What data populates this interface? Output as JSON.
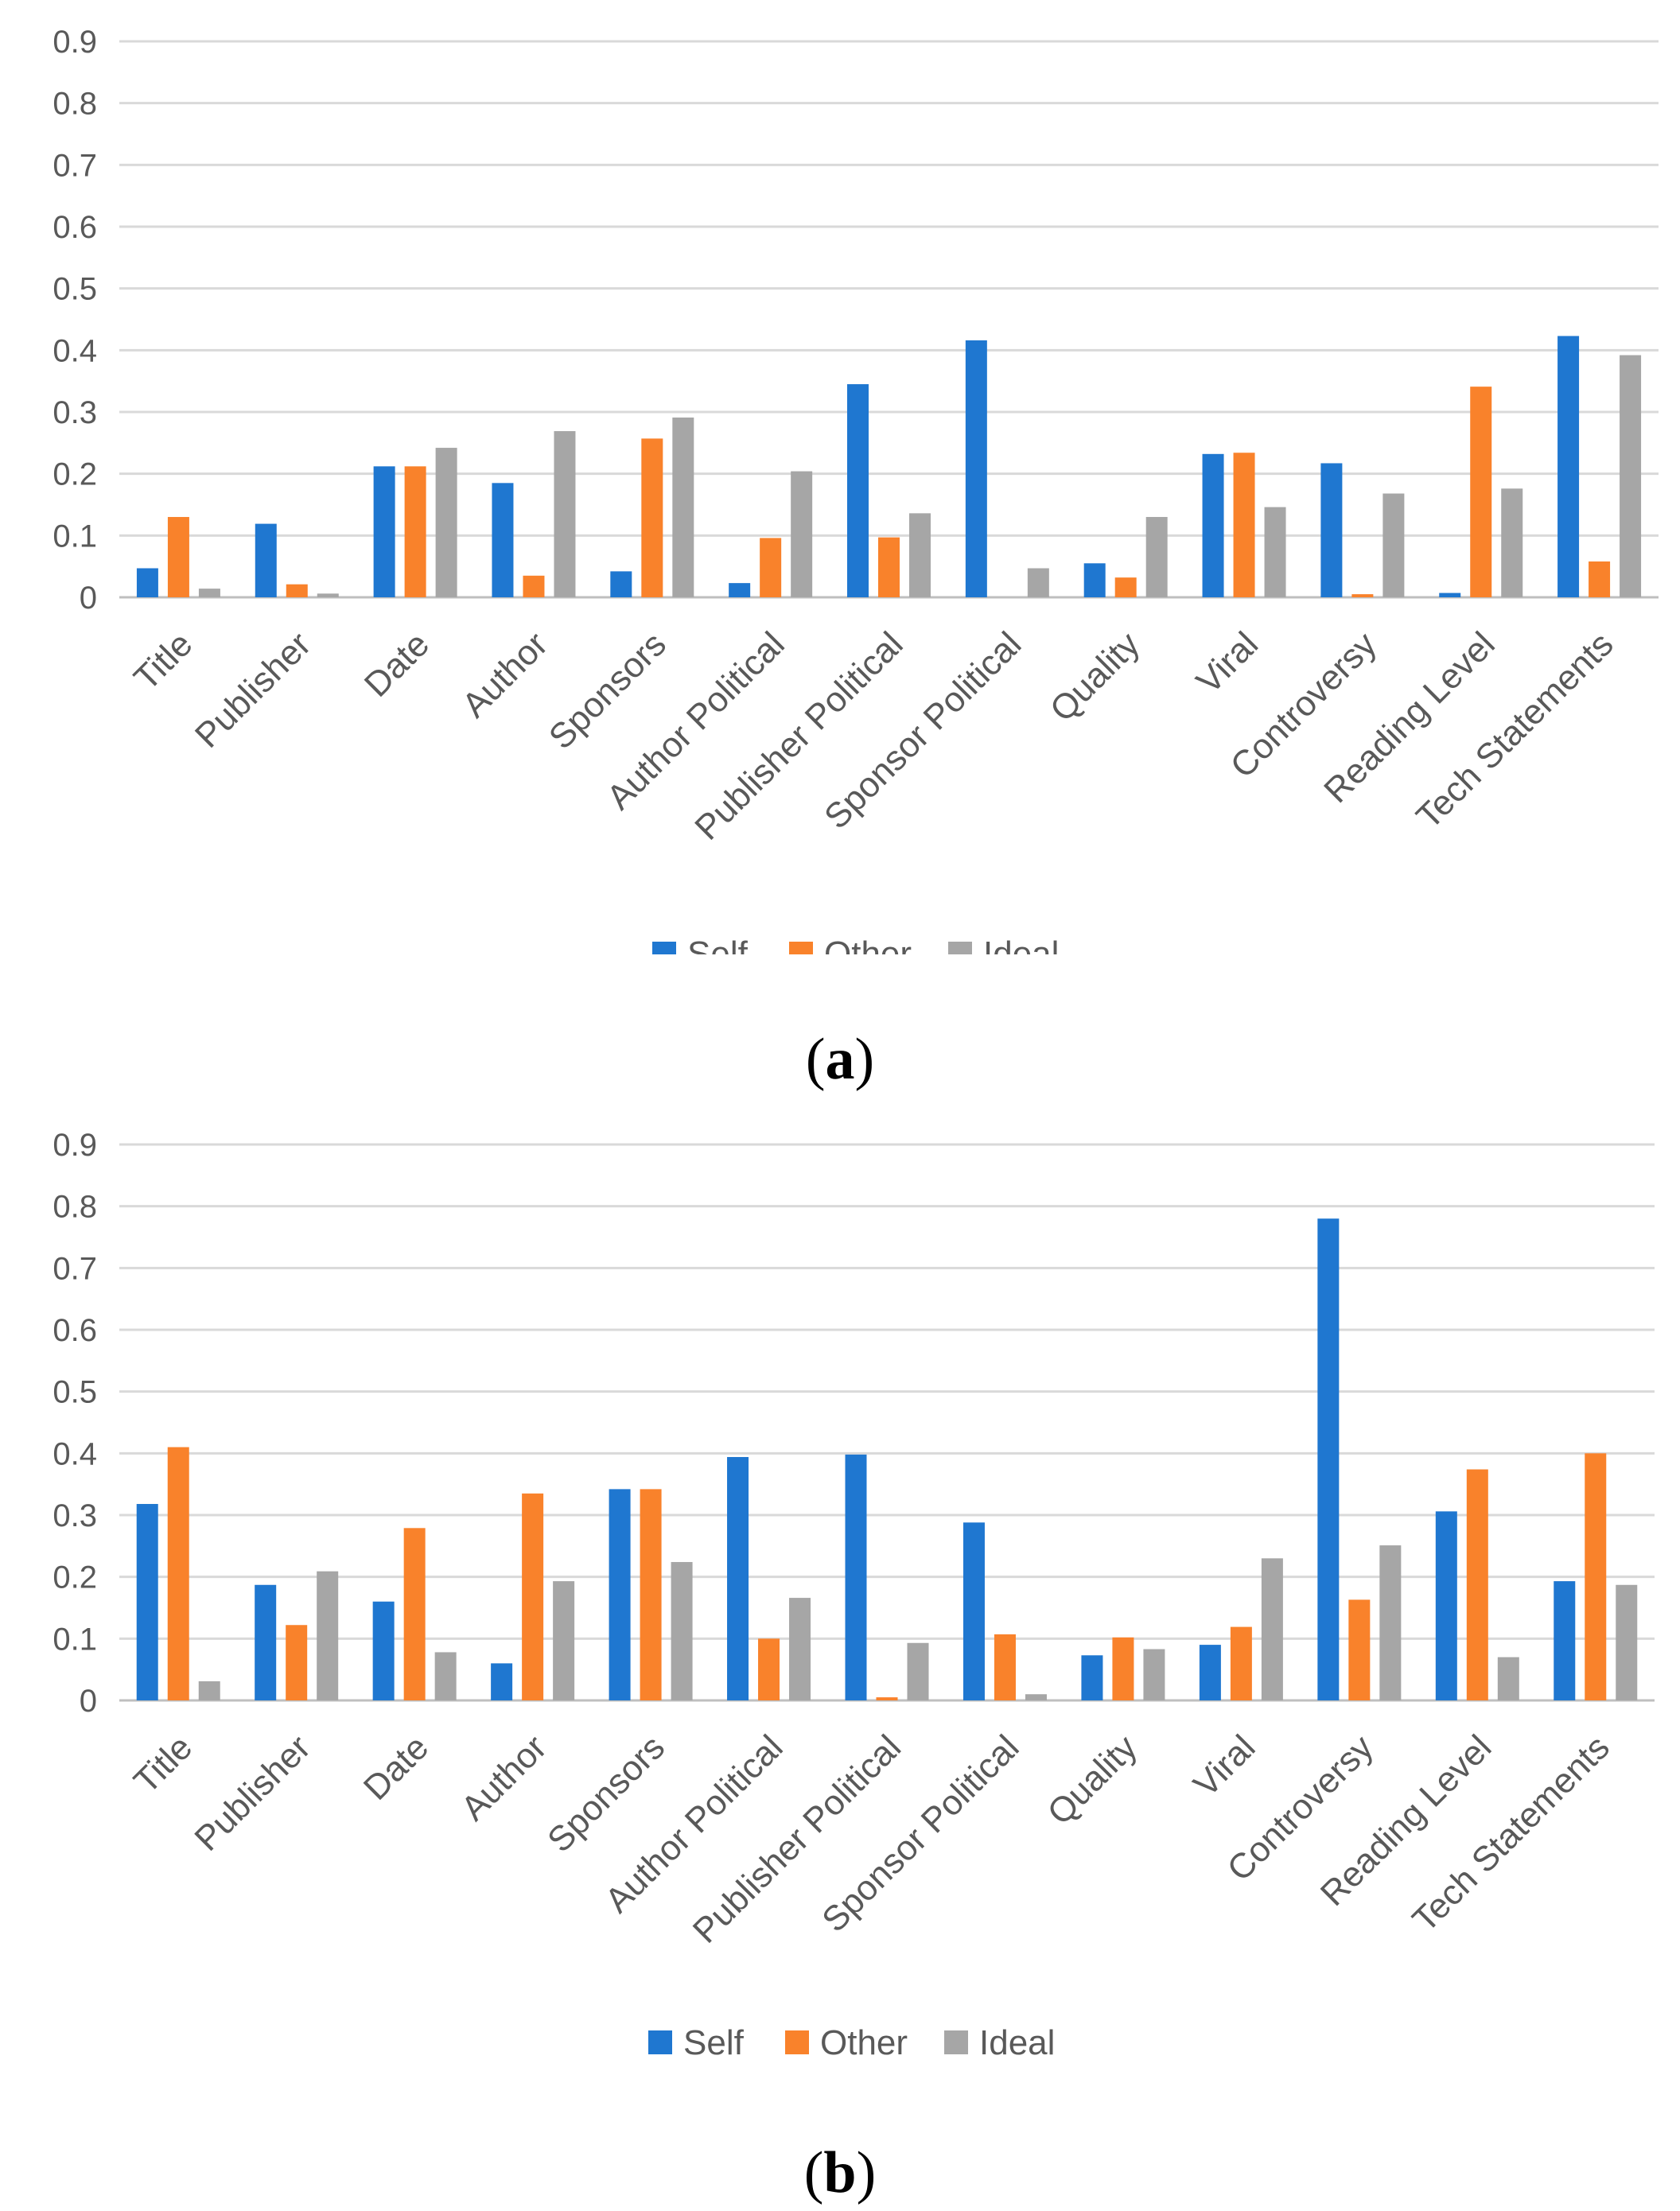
{
  "chart_data": [
    {
      "type": "bar",
      "caption": "a",
      "categories": [
        "Title",
        "Publisher",
        "Date",
        "Author",
        "Sponsors",
        "Author Political",
        "Publisher Political",
        "Sponsor Political",
        "Quality",
        "Viral",
        "Controversy",
        "Reading Level",
        "Tech Statements"
      ],
      "series": [
        {
          "name": "Self",
          "color": "#1f77d0",
          "values": [
            0.047,
            0.119,
            0.212,
            0.185,
            0.042,
            0.023,
            0.345,
            0.416,
            0.055,
            0.232,
            0.217,
            0.007,
            0.423
          ]
        },
        {
          "name": "Other",
          "color": "#f9822b",
          "values": [
            0.13,
            0.021,
            0.212,
            0.035,
            0.257,
            0.096,
            0.097,
            0.0,
            0.032,
            0.234,
            0.005,
            0.341,
            0.058
          ]
        },
        {
          "name": "Ideal",
          "color": "#a6a6a6",
          "values": [
            0.014,
            0.006,
            0.242,
            0.269,
            0.291,
            0.204,
            0.136,
            0.047,
            0.13,
            0.146,
            0.168,
            0.176,
            0.392
          ]
        }
      ],
      "yticks": [
        "0",
        "0.1",
        "0.2",
        "0.3",
        "0.4",
        "0.5",
        "0.6",
        "0.7",
        "0.8",
        "0.9"
      ],
      "ylim": [
        0,
        0.9
      ],
      "grid": true,
      "legend": "bottom"
    },
    {
      "type": "bar",
      "caption": "b",
      "categories": [
        "Title",
        "Publisher",
        "Date",
        "Author",
        "Sponsors",
        "Author Political",
        "Publisher Political",
        "Sponsor Political",
        "Quality",
        "Viral",
        "Controversy",
        "Reading Level",
        "Tech Statements"
      ],
      "series": [
        {
          "name": "Self",
          "color": "#1f77d0",
          "values": [
            0.318,
            0.187,
            0.16,
            0.06,
            0.342,
            0.394,
            0.398,
            0.288,
            0.073,
            0.09,
            0.78,
            0.306,
            0.193
          ]
        },
        {
          "name": "Other",
          "color": "#f9822b",
          "values": [
            0.41,
            0.122,
            0.279,
            0.335,
            0.342,
            0.1,
            0.005,
            0.107,
            0.102,
            0.119,
            0.163,
            0.374,
            0.4
          ]
        },
        {
          "name": "Ideal",
          "color": "#a6a6a6",
          "values": [
            0.031,
            0.209,
            0.078,
            0.193,
            0.224,
            0.166,
            0.093,
            0.01,
            0.083,
            0.23,
            0.251,
            0.07,
            0.187
          ]
        }
      ],
      "yticks": [
        "0",
        "0.1",
        "0.2",
        "0.3",
        "0.4",
        "0.5",
        "0.6",
        "0.7",
        "0.8",
        "0.9"
      ],
      "ylim": [
        0,
        0.9
      ],
      "grid": true,
      "legend": "bottom"
    }
  ]
}
